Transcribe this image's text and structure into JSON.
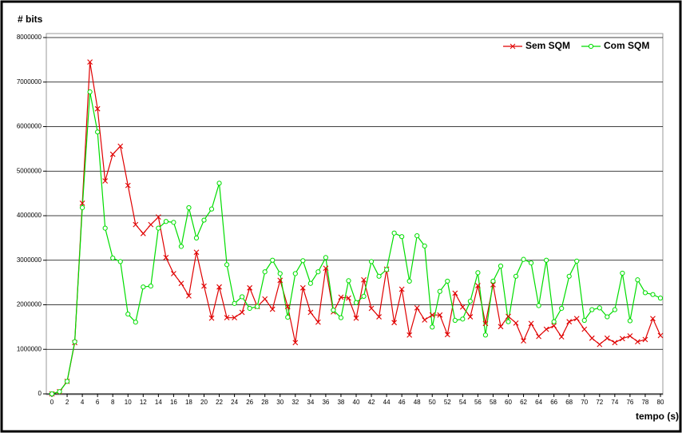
{
  "chart_data": {
    "type": "line",
    "title": "# bits",
    "x_label": "tempo (s)",
    "x": [
      0,
      1,
      2,
      3,
      4,
      5,
      6,
      7,
      8,
      9,
      10,
      11,
      12,
      13,
      14,
      15,
      16,
      17,
      18,
      19,
      20,
      21,
      22,
      23,
      24,
      25,
      26,
      27,
      28,
      29,
      30,
      31,
      32,
      33,
      34,
      35,
      36,
      37,
      38,
      39,
      40,
      41,
      42,
      43,
      44,
      45,
      46,
      47,
      48,
      49,
      50,
      51,
      52,
      53,
      54,
      55,
      56,
      57,
      58,
      59,
      60,
      61,
      62,
      63,
      64,
      65,
      66,
      67,
      68,
      69,
      70,
      71,
      72,
      73,
      74,
      75,
      76,
      77,
      78,
      79,
      80
    ],
    "xlim": [
      0,
      80
    ],
    "xticks": [
      0,
      2,
      4,
      6,
      8,
      10,
      12,
      14,
      16,
      18,
      20,
      22,
      24,
      26,
      28,
      30,
      32,
      34,
      36,
      38,
      40,
      42,
      44,
      46,
      48,
      50,
      52,
      54,
      56,
      58,
      60,
      62,
      64,
      66,
      68,
      70,
      72,
      74,
      76,
      78,
      80
    ],
    "ylim": [
      0,
      8000000
    ],
    "yticks": [
      0,
      1000000,
      2000000,
      3000000,
      4000000,
      5000000,
      6000000,
      7000000,
      8000000
    ],
    "grid": true,
    "legend": "top-right",
    "series": [
      {
        "name": "Sem SQM",
        "color": "#e00000",
        "marker": "x",
        "values": [
          0,
          50000,
          280000,
          1150000,
          4280000,
          7450000,
          6400000,
          4780000,
          5380000,
          5560000,
          4680000,
          3800000,
          3600000,
          3800000,
          3970000,
          3060000,
          2700000,
          2480000,
          2200000,
          3180000,
          2420000,
          1700000,
          2400000,
          1710000,
          1710000,
          1830000,
          2380000,
          1960000,
          2130000,
          1900000,
          2550000,
          1960000,
          1150000,
          2380000,
          1830000,
          1610000,
          2820000,
          1840000,
          2170000,
          2150000,
          1700000,
          2560000,
          1920000,
          1730000,
          2800000,
          1600000,
          2350000,
          1320000,
          1930000,
          1660000,
          1770000,
          1770000,
          1330000,
          2260000,
          1950000,
          1730000,
          2430000,
          1580000,
          2450000,
          1510000,
          1740000,
          1590000,
          1190000,
          1580000,
          1290000,
          1450000,
          1530000,
          1280000,
          1620000,
          1690000,
          1450000,
          1250000,
          1110000,
          1250000,
          1150000,
          1240000,
          1300000,
          1170000,
          1220000,
          1690000,
          1310000
        ]
      },
      {
        "name": "Com SQM",
        "color": "#00dd00",
        "marker": "circle",
        "values": [
          0,
          50000,
          280000,
          1170000,
          4180000,
          6780000,
          5880000,
          3720000,
          3050000,
          2970000,
          1790000,
          1610000,
          2400000,
          2420000,
          3720000,
          3870000,
          3850000,
          3310000,
          4180000,
          3500000,
          3900000,
          4150000,
          4730000,
          2900000,
          2030000,
          2180000,
          1920000,
          1960000,
          2740000,
          3000000,
          2700000,
          1720000,
          2700000,
          2990000,
          2480000,
          2740000,
          3060000,
          1880000,
          1710000,
          2540000,
          2050000,
          2190000,
          2970000,
          2640000,
          2790000,
          3610000,
          3530000,
          2530000,
          3550000,
          3320000,
          1500000,
          2300000,
          2530000,
          1650000,
          1680000,
          2080000,
          2720000,
          1320000,
          2530000,
          2870000,
          1620000,
          2640000,
          3020000,
          2940000,
          1980000,
          3000000,
          1620000,
          1920000,
          2640000,
          2980000,
          1650000,
          1890000,
          1930000,
          1730000,
          1890000,
          2710000,
          1640000,
          2560000,
          2270000,
          2230000,
          2150000
        ]
      }
    ]
  }
}
